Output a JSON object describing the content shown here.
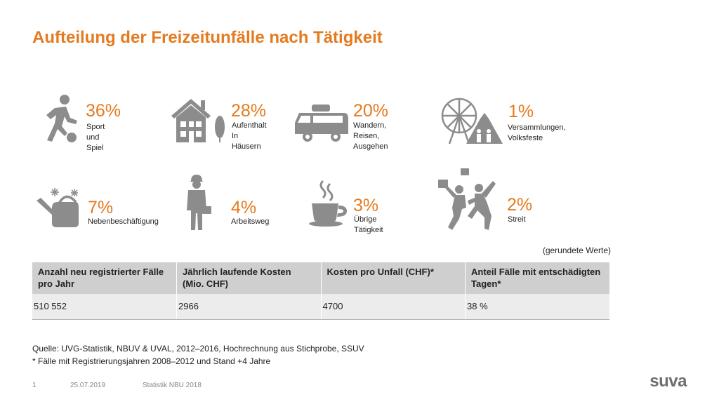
{
  "title": "Aufteilung der Freizeitunfälle nach Tätigkeit",
  "stats": [
    {
      "percent": "36%",
      "label": "Sport und Spiel",
      "icon": "soccer-player-icon"
    },
    {
      "percent": "28%",
      "label": "Aufenthalt\nIn Häusern",
      "icon": "house-icon"
    },
    {
      "percent": "20%",
      "label": "Wandern, Reisen,\nAusgehen",
      "icon": "camper-van-icon"
    },
    {
      "percent": "1%",
      "label": "Versammlungen,\nVolksfeste",
      "icon": "ferris-wheel-icon"
    },
    {
      "percent": "7%",
      "label": "Nebenbeschäftigung",
      "icon": "watering-can-icon"
    },
    {
      "percent": "4%",
      "label": "Arbeitsweg",
      "icon": "worker-icon"
    },
    {
      "percent": "3%",
      "label": "Übrige Tätigkeit",
      "icon": "coffee-cup-icon"
    },
    {
      "percent": "2%",
      "label": "Streit",
      "icon": "fight-icon"
    }
  ],
  "rounded_note": "(gerundete Werte)",
  "table": {
    "headers": [
      "Anzahl neu registrierter Fälle pro Jahr",
      "Jährlich laufende Kosten (Mio. CHF)",
      "Kosten pro Unfall (CHF)*",
      "Anteil Fälle mit entschädigten Tagen*"
    ],
    "values": [
      "510 552",
      "2966",
      "4700",
      "38 %"
    ]
  },
  "source_line": "Quelle: UVG-Statistik, NBUV & UVAL, 2012–2016, Hochrechnung aus Stichprobe, SSUV",
  "footnote": "* Fälle mit Registrierungsjahren 2008–2012 und Stand +4 Jahre",
  "footer": {
    "page": "1",
    "date": "25.07.2019",
    "doc_title": "Statistik NBU 2018"
  },
  "logo_text": "suva",
  "colors": {
    "accent": "#E57A1F",
    "icon_gray": "#8c8c8c",
    "header_gray": "#cfcfcf",
    "row_gray": "#ececec"
  }
}
